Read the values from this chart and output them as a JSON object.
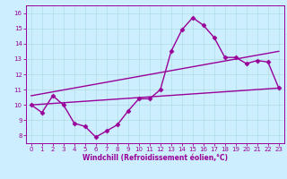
{
  "xlabel": "Windchill (Refroidissement éolien,°C)",
  "background_color": "#cceeff",
  "line_color": "#990099",
  "grid_color": "#b0dde0",
  "xlim": [
    -0.5,
    23.5
  ],
  "ylim": [
    7.5,
    16.5
  ],
  "xticks": [
    0,
    1,
    2,
    3,
    4,
    5,
    6,
    7,
    8,
    9,
    10,
    11,
    12,
    13,
    14,
    15,
    16,
    17,
    18,
    19,
    20,
    21,
    22,
    23
  ],
  "yticks": [
    8,
    9,
    10,
    11,
    12,
    13,
    14,
    15,
    16
  ],
  "line1_x": [
    0,
    1,
    2,
    3,
    4,
    5,
    6,
    7,
    8,
    9,
    10,
    11,
    12,
    13,
    14,
    15,
    16,
    17,
    18,
    19,
    20,
    21,
    22,
    23
  ],
  "line1_y": [
    10.0,
    9.5,
    10.6,
    10.0,
    8.8,
    8.6,
    7.9,
    8.3,
    8.7,
    9.6,
    10.4,
    10.4,
    11.0,
    13.5,
    14.9,
    15.7,
    15.2,
    14.4,
    13.1,
    13.1,
    12.7,
    12.9,
    12.8,
    11.1
  ],
  "line2_x": [
    0,
    23
  ],
  "line2_y": [
    10.0,
    11.1
  ],
  "line3_x": [
    0,
    23
  ],
  "line3_y": [
    10.6,
    13.5
  ],
  "marker": "D",
  "markersize": 2.5,
  "linewidth": 1.0
}
